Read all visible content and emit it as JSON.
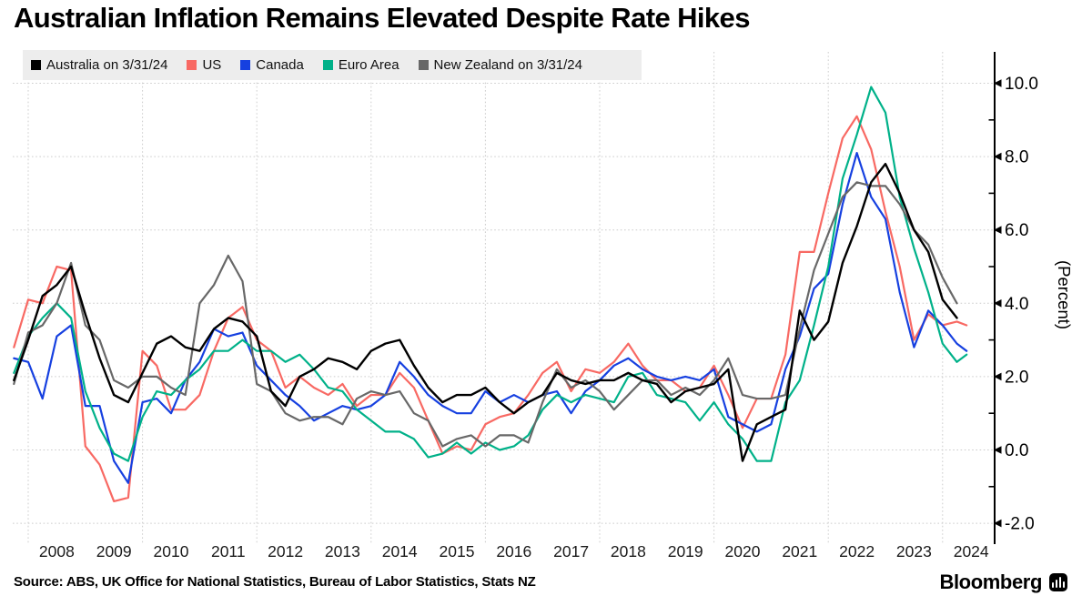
{
  "title": "Australian Inflation Remains Elevated Despite Rate Hikes",
  "source": "Source: ABS, UK Office for National Statistics, Bureau of Labor Statistics, Stats NZ",
  "branding": {
    "wordmark": "Bloomberg",
    "icon": "bloomberg-bars-icon"
  },
  "legend": {
    "position": "top-left",
    "background": "#ededed",
    "items": [
      {
        "label": "Australia on 3/31/24",
        "color": "#000000"
      },
      {
        "label": "US",
        "color": "#f86963"
      },
      {
        "label": "Canada",
        "color": "#1640e0"
      },
      {
        "label": "Euro Area",
        "color": "#00b189"
      },
      {
        "label": "New Zealand on 3/31/24",
        "color": "#686868"
      }
    ]
  },
  "chart_data": {
    "type": "line",
    "title": "Australian Inflation Remains Elevated Despite Rate Hikes",
    "ylabel": "(Percent)",
    "xlabel": "",
    "grid": "dotted",
    "gridline_color": "#cccccc",
    "xlim": [
      2007.7,
      2024.6
    ],
    "ylim": [
      -2.6,
      10.9
    ],
    "x_axis": {
      "tick_label_years": [
        2008,
        2009,
        2010,
        2011,
        2012,
        2013,
        2014,
        2015,
        2016,
        2017,
        2018,
        2019,
        2020,
        2021,
        2022,
        2023,
        2024
      ],
      "gridline_years": [
        2008,
        2010,
        2012,
        2014,
        2016,
        2018,
        2020,
        2022,
        2024
      ]
    },
    "y_axis": {
      "side": "right",
      "unit_label": "(Percent)",
      "ticks": [
        {
          "v": 10,
          "label": "10.0"
        },
        {
          "v": 8,
          "label": "8.0"
        },
        {
          "v": 6,
          "label": "6.0"
        },
        {
          "v": 4,
          "label": "4.0"
        },
        {
          "v": 2,
          "label": "2.0"
        },
        {
          "v": 0,
          "label": "0.0"
        },
        {
          "v": -2,
          "label": "-2.0"
        }
      ],
      "minor_ticks": [
        9,
        7,
        5,
        3,
        1,
        -1
      ]
    },
    "x_unit": "decimal_year_quarter_end",
    "series": [
      {
        "name": "Australia on 3/31/24",
        "color": "#000000",
        "frequency": "quarterly",
        "x_start": 2007.75,
        "x_step": 0.25,
        "values": [
          1.9,
          3.0,
          4.2,
          4.5,
          5.0,
          3.7,
          2.5,
          1.5,
          1.3,
          2.1,
          2.9,
          3.1,
          2.8,
          2.7,
          3.3,
          3.6,
          3.5,
          3.1,
          1.6,
          1.2,
          2.0,
          2.2,
          2.5,
          2.4,
          2.2,
          2.7,
          2.9,
          3.0,
          2.3,
          1.7,
          1.3,
          1.5,
          1.5,
          1.7,
          1.3,
          1.0,
          1.3,
          1.5,
          2.1,
          1.9,
          1.8,
          1.9,
          1.9,
          2.1,
          1.9,
          1.8,
          1.3,
          1.6,
          1.7,
          1.8,
          2.2,
          -0.3,
          0.7,
          0.9,
          1.1,
          3.8,
          3.0,
          3.5,
          5.1,
          6.1,
          7.3,
          7.8,
          7.0,
          6.0,
          5.4,
          4.1,
          3.6
        ]
      },
      {
        "name": "US",
        "color": "#f86963",
        "frequency": "quarterly",
        "x_start": 2007.75,
        "x_step": 0.25,
        "values": [
          2.8,
          4.1,
          4.0,
          5.0,
          4.9,
          0.1,
          -0.4,
          -1.4,
          -1.3,
          2.7,
          2.3,
          1.1,
          1.1,
          1.5,
          2.7,
          3.6,
          3.9,
          3.0,
          2.7,
          1.7,
          2.0,
          1.7,
          1.5,
          1.8,
          1.2,
          1.5,
          1.5,
          2.1,
          1.7,
          0.8,
          -0.1,
          0.1,
          0.0,
          0.7,
          0.9,
          1.0,
          1.5,
          2.1,
          2.4,
          1.6,
          2.2,
          2.1,
          2.4,
          2.9,
          2.3,
          1.9,
          1.9,
          1.6,
          1.7,
          2.3,
          1.5,
          0.6,
          1.4,
          1.4,
          2.6,
          5.4,
          5.4,
          7.0,
          8.5,
          9.1,
          8.2,
          6.5,
          5.0,
          3.0,
          3.7,
          3.4,
          3.5
        ],
        "extend": {
          "x": 2024.42,
          "value": 3.4
        }
      },
      {
        "name": "Canada",
        "color": "#1640e0",
        "frequency": "quarterly",
        "x_start": 2007.75,
        "x_step": 0.25,
        "values": [
          2.5,
          2.4,
          1.4,
          3.1,
          3.4,
          1.2,
          1.2,
          -0.3,
          -0.9,
          1.3,
          1.4,
          1.0,
          1.9,
          2.4,
          3.3,
          3.1,
          3.2,
          2.3,
          1.9,
          1.5,
          1.2,
          0.8,
          1.0,
          1.2,
          1.1,
          1.2,
          1.5,
          2.4,
          2.0,
          1.5,
          1.2,
          1.0,
          1.0,
          1.6,
          1.3,
          1.5,
          1.3,
          1.5,
          1.6,
          1.0,
          1.6,
          1.9,
          2.3,
          2.5,
          2.2,
          2.0,
          1.9,
          2.0,
          1.9,
          2.2,
          0.9,
          0.7,
          0.5,
          0.7,
          2.2,
          3.1,
          4.4,
          4.8,
          6.7,
          8.1,
          6.9,
          6.3,
          4.3,
          2.8,
          3.8,
          3.4,
          2.9
        ],
        "extend": {
          "x": 2024.42,
          "value": 2.7
        }
      },
      {
        "name": "Euro Area",
        "color": "#00b189",
        "frequency": "quarterly",
        "x_start": 2007.75,
        "x_step": 0.25,
        "values": [
          2.1,
          3.1,
          3.6,
          4.0,
          3.6,
          1.6,
          0.6,
          -0.1,
          -0.3,
          0.9,
          1.6,
          1.5,
          1.9,
          2.2,
          2.7,
          2.7,
          3.0,
          2.7,
          2.7,
          2.4,
          2.6,
          2.2,
          1.7,
          1.6,
          1.1,
          0.8,
          0.5,
          0.5,
          0.3,
          -0.2,
          -0.1,
          0.2,
          -0.1,
          0.2,
          0.0,
          0.1,
          0.4,
          1.1,
          1.5,
          1.3,
          1.5,
          1.4,
          1.3,
          2.0,
          2.1,
          1.5,
          1.4,
          1.3,
          0.8,
          1.3,
          0.7,
          0.3,
          -0.3,
          -0.3,
          1.3,
          1.9,
          3.4,
          5.0,
          7.4,
          8.6,
          9.9,
          9.2,
          6.9,
          5.5,
          4.3,
          2.9,
          2.4
        ],
        "extend": {
          "x": 2024.42,
          "value": 2.6
        }
      },
      {
        "name": "New Zealand on 3/31/24",
        "color": "#686868",
        "frequency": "quarterly",
        "x_start": 2007.75,
        "x_step": 0.25,
        "values": [
          1.8,
          3.2,
          3.4,
          4.0,
          5.1,
          3.4,
          3.0,
          1.9,
          1.7,
          2.0,
          2.0,
          1.7,
          1.5,
          4.0,
          4.5,
          5.3,
          4.6,
          1.8,
          1.6,
          1.0,
          0.8,
          0.9,
          0.9,
          0.7,
          1.4,
          1.6,
          1.5,
          1.6,
          1.0,
          0.8,
          0.1,
          0.3,
          0.4,
          0.1,
          0.4,
          0.4,
          0.2,
          1.3,
          2.2,
          1.7,
          1.9,
          1.6,
          1.1,
          1.5,
          1.9,
          1.9,
          1.5,
          1.7,
          1.5,
          1.9,
          2.5,
          1.5,
          1.4,
          1.4,
          1.5,
          3.3,
          4.9,
          5.9,
          6.9,
          7.3,
          7.2,
          7.2,
          6.7,
          6.0,
          5.6,
          4.7,
          4.0
        ]
      }
    ]
  }
}
